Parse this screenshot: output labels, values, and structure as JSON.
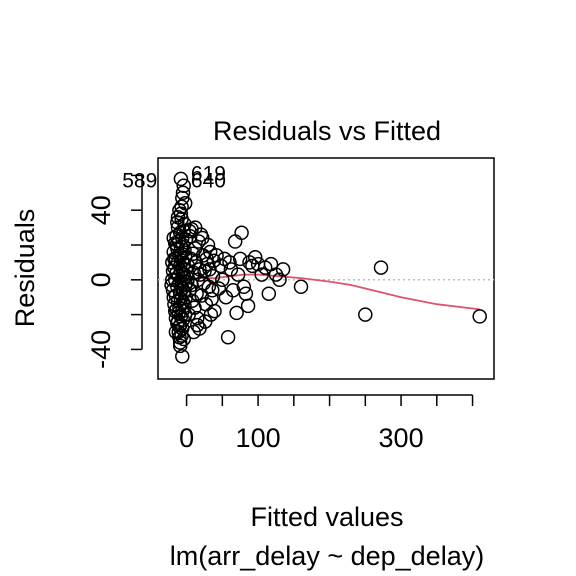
{
  "chart_data": {
    "type": "scatter",
    "title": "Residuals vs Fitted",
    "xlabel": "Fitted values",
    "subtitle": "lm(arr_delay ~ dep_delay)",
    "ylabel": "Residuals",
    "xlim": [
      -40,
      430
    ],
    "ylim": [
      -57,
      70
    ],
    "xticks": [
      0,
      50,
      100,
      150,
      200,
      250,
      300,
      350,
      400
    ],
    "xtick_labels": [
      {
        "value": 0,
        "label": "0"
      },
      {
        "value": 100,
        "label": "100"
      },
      {
        "value": 300,
        "label": "300"
      }
    ],
    "yticks": [
      -60,
      -40,
      -20,
      0,
      20,
      40,
      60
    ],
    "ytick_labels": [
      {
        "value": -40,
        "label": "-40"
      },
      {
        "value": 0,
        "label": "0"
      },
      {
        "value": 40,
        "label": "40"
      }
    ],
    "reference_line": {
      "y": 0,
      "style": "dotted",
      "color": "#bebebe"
    },
    "smoother": {
      "color": "#df536b",
      "points": [
        [
          -22,
          -4
        ],
        [
          -15,
          -2
        ],
        [
          -5,
          -1
        ],
        [
          5,
          1
        ],
        [
          20,
          1
        ],
        [
          40,
          1
        ],
        [
          60,
          2
        ],
        [
          80,
          3
        ],
        [
          100,
          3
        ],
        [
          130,
          2
        ],
        [
          160,
          1
        ],
        [
          200,
          -1
        ],
        [
          230,
          -3
        ],
        [
          300,
          -10
        ],
        [
          350,
          -14
        ],
        [
          410,
          -17
        ]
      ]
    },
    "point_labels": [
      {
        "text": "619",
        "x": 6,
        "y": 57
      },
      {
        "text": "589",
        "x": -41,
        "y": 53
      },
      {
        "text": "640",
        "x": 6,
        "y": 53
      }
    ],
    "points": [
      [
        -8,
        58
      ],
      [
        -4,
        54
      ],
      [
        -6,
        47
      ],
      [
        -2,
        44
      ],
      [
        -5,
        50
      ],
      [
        -10,
        40
      ],
      [
        -7,
        35
      ],
      [
        -3,
        32
      ],
      [
        -12,
        30
      ],
      [
        -4,
        28
      ],
      [
        -9,
        27
      ],
      [
        -14,
        25
      ],
      [
        -6,
        24
      ],
      [
        -1,
        23
      ],
      [
        -11,
        22
      ],
      [
        -16,
        21
      ],
      [
        -5,
        20
      ],
      [
        -8,
        19
      ],
      [
        -13,
        18
      ],
      [
        -3,
        17
      ],
      [
        -18,
        16
      ],
      [
        -7,
        15
      ],
      [
        -10,
        14
      ],
      [
        -2,
        13
      ],
      [
        -15,
        12
      ],
      [
        -6,
        11
      ],
      [
        -12,
        10
      ],
      [
        -4,
        9
      ],
      [
        -9,
        8
      ],
      [
        -17,
        7
      ],
      [
        -1,
        6
      ],
      [
        -8,
        5
      ],
      [
        -14,
        4
      ],
      [
        -5,
        3
      ],
      [
        -11,
        2
      ],
      [
        -3,
        1
      ],
      [
        -16,
        0
      ],
      [
        -7,
        -1
      ],
      [
        -10,
        -2
      ],
      [
        -2,
        -3
      ],
      [
        -13,
        -4
      ],
      [
        -6,
        -5
      ],
      [
        -19,
        -6
      ],
      [
        -4,
        -7
      ],
      [
        -9,
        -8
      ],
      [
        -15,
        -9
      ],
      [
        -1,
        -10
      ],
      [
        -8,
        -11
      ],
      [
        -12,
        -12
      ],
      [
        -5,
        -13
      ],
      [
        -17,
        -14
      ],
      [
        -3,
        -15
      ],
      [
        -10,
        -16
      ],
      [
        -14,
        -17
      ],
      [
        -6,
        -18
      ],
      [
        -11,
        -19
      ],
      [
        -2,
        -20
      ],
      [
        -8,
        -21
      ],
      [
        -15,
        -22
      ],
      [
        -5,
        -23
      ],
      [
        -12,
        -24
      ],
      [
        -9,
        -26
      ],
      [
        -6,
        -28
      ],
      [
        -11,
        -30
      ],
      [
        -7,
        -32
      ],
      [
        -4,
        -34
      ],
      [
        -9,
        -36
      ],
      [
        -6,
        -44
      ],
      [
        -10,
        -27
      ],
      [
        -13,
        -25
      ],
      [
        -20,
        10
      ],
      [
        -18,
        -10
      ],
      [
        -20,
        0
      ],
      [
        -19,
        5
      ],
      [
        -21,
        -3
      ],
      [
        -17,
        12
      ],
      [
        -16,
        -18
      ],
      [
        -14,
        20
      ],
      [
        -18,
        24
      ],
      [
        -15,
        -30
      ],
      [
        -13,
        33
      ],
      [
        -12,
        36
      ],
      [
        -8,
        38
      ],
      [
        -9,
        -38
      ],
      [
        -7,
        42
      ],
      [
        -10,
        -33
      ],
      [
        0,
        2
      ],
      [
        2,
        8
      ],
      [
        4,
        -6
      ],
      [
        6,
        12
      ],
      [
        8,
        -12
      ],
      [
        10,
        4
      ],
      [
        12,
        18
      ],
      [
        14,
        -8
      ],
      [
        16,
        0
      ],
      [
        18,
        6
      ],
      [
        3,
        -20
      ],
      [
        5,
        25
      ],
      [
        7,
        -3
      ],
      [
        9,
        15
      ],
      [
        11,
        -16
      ],
      [
        13,
        10
      ],
      [
        15,
        -22
      ],
      [
        17,
        22
      ],
      [
        19,
        3
      ],
      [
        1,
        -1
      ],
      [
        21,
        -9
      ],
      [
        23,
        14
      ],
      [
        25,
        5
      ],
      [
        27,
        -14
      ],
      [
        29,
        9
      ],
      [
        31,
        -4
      ],
      [
        33,
        16
      ],
      [
        35,
        -11
      ],
      [
        37,
        2
      ],
      [
        39,
        -18
      ],
      [
        22,
        24
      ],
      [
        26,
        -24
      ],
      [
        30,
        20
      ],
      [
        34,
        -20
      ],
      [
        20,
        26
      ],
      [
        24,
        -2
      ],
      [
        28,
        12
      ],
      [
        32,
        6
      ],
      [
        36,
        -6
      ],
      [
        38,
        11
      ],
      [
        12,
        30
      ],
      [
        15,
        -26
      ],
      [
        18,
        -28
      ],
      [
        7,
        29
      ],
      [
        10,
        -30
      ],
      [
        4,
        28
      ],
      [
        42,
        14
      ],
      [
        45,
        -5
      ],
      [
        48,
        8
      ],
      [
        50,
        0
      ],
      [
        53,
        12
      ],
      [
        55,
        -10
      ],
      [
        58,
        -33
      ],
      [
        60,
        10
      ],
      [
        62,
        6
      ],
      [
        65,
        -6
      ],
      [
        68,
        22
      ],
      [
        70,
        -19
      ],
      [
        72,
        3
      ],
      [
        75,
        12
      ],
      [
        77,
        27
      ],
      [
        80,
        -4
      ],
      [
        83,
        -8
      ],
      [
        86,
        -15
      ],
      [
        88,
        10
      ],
      [
        92,
        8
      ],
      [
        96,
        13
      ],
      [
        100,
        9
      ],
      [
        105,
        3
      ],
      [
        110,
        7
      ],
      [
        115,
        -8
      ],
      [
        118,
        9
      ],
      [
        125,
        3
      ],
      [
        130,
        0
      ],
      [
        135,
        6
      ],
      [
        160,
        -4
      ],
      [
        250,
        -20
      ],
      [
        272,
        7
      ],
      [
        410,
        -21
      ]
    ]
  }
}
